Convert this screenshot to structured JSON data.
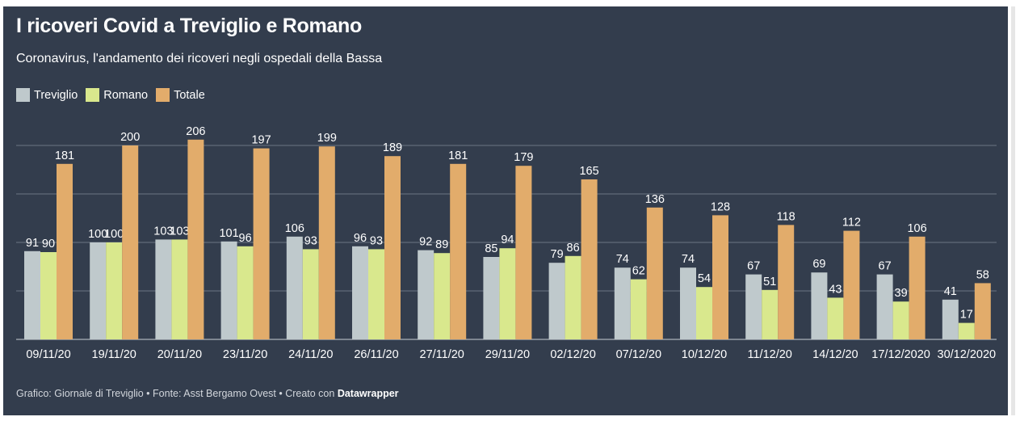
{
  "header": {
    "title": "I ricoveri Covid a Treviglio e Romano",
    "subtitle": "Coronavirus, l'andamento dei ricoveri negli ospedali della Bassa"
  },
  "legend": [
    {
      "label": "Treviglio",
      "color": "#bfc9cc"
    },
    {
      "label": "Romano",
      "color": "#d9e88d"
    },
    {
      "label": "Totale",
      "color": "#e2ac6b"
    }
  ],
  "chart_data": {
    "type": "bar",
    "categories": [
      "09/11/20",
      "19/11/20",
      "20/11/20",
      "23/11/20",
      "24/11/20",
      "26/11/20",
      "27/11/20",
      "29/11/20",
      "02/12/20",
      "07/12/20",
      "10/12/20",
      "11/12/20",
      "14/12/20",
      "17/12/2020",
      "30/12/2020"
    ],
    "series": [
      {
        "name": "Treviglio",
        "color": "#bfc9cc",
        "values": [
          91,
          100,
          103,
          101,
          106,
          96,
          92,
          85,
          79,
          74,
          74,
          67,
          69,
          67,
          41
        ]
      },
      {
        "name": "Romano",
        "color": "#d9e88d",
        "values": [
          90,
          100,
          103,
          96,
          93,
          93,
          89,
          94,
          86,
          62,
          54,
          51,
          43,
          39,
          17
        ]
      },
      {
        "name": "Totale",
        "color": "#e2ac6b",
        "values": [
          181,
          200,
          206,
          197,
          199,
          189,
          181,
          179,
          165,
          136,
          128,
          118,
          112,
          106,
          58
        ]
      }
    ],
    "ylim": [
      0,
      200
    ],
    "gridlines": [
      0,
      50,
      100,
      150,
      200
    ],
    "grid": true,
    "legend": "top-left"
  },
  "footer": {
    "prefix": "Grafico: Giornale di Treviglio • Fonte: Asst Bergamo Ovest • Creato con ",
    "brand": "Datawrapper"
  }
}
